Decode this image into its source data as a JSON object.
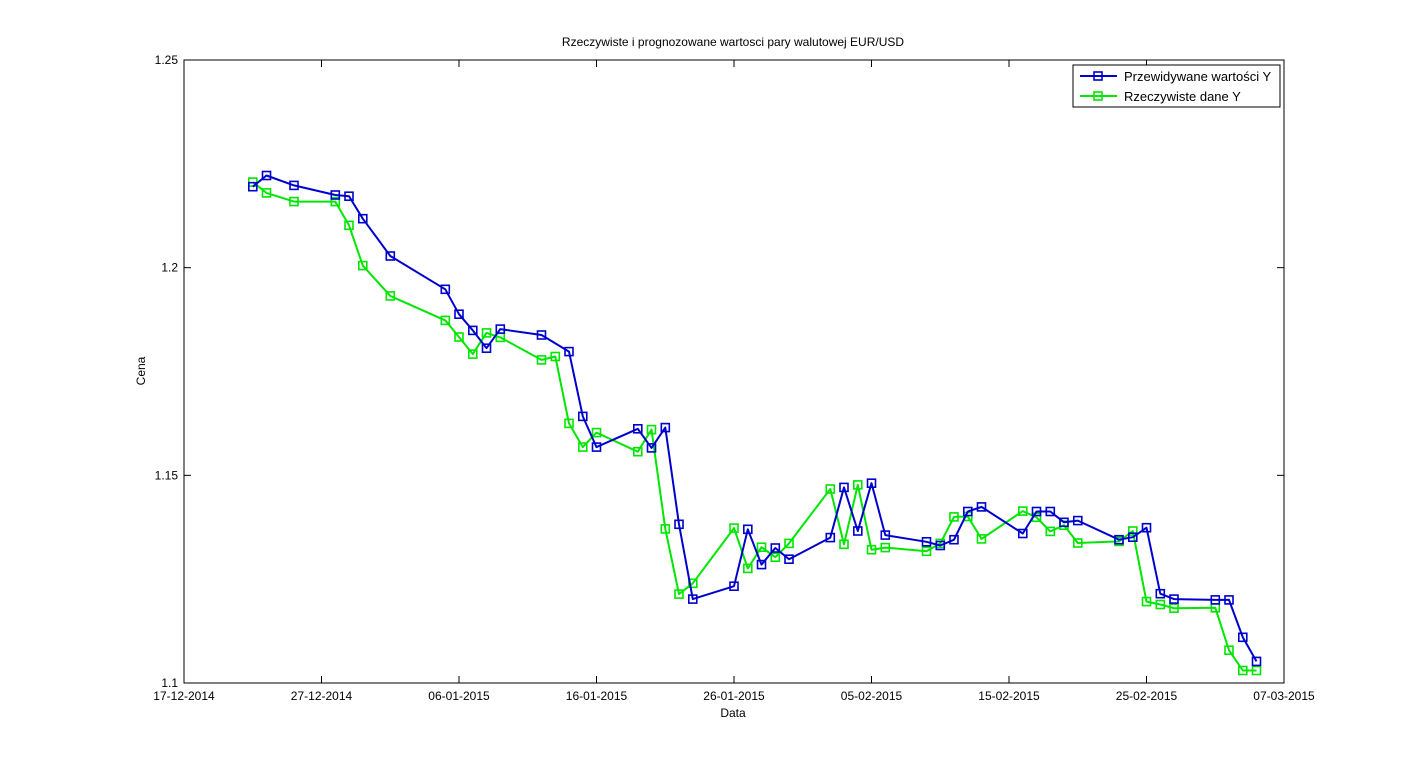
{
  "chart_data": {
    "type": "line",
    "title": "Rzeczywiste i prognozowane wartosci pary walutowej EUR/USD",
    "xlabel": "Data",
    "ylabel": "Cena",
    "xlim": [
      "2014-12-17",
      "2015-03-07"
    ],
    "ylim": [
      1.1,
      1.25
    ],
    "x_ticks": [
      "17-12-2014",
      "27-12-2014",
      "06-01-2015",
      "16-01-2015",
      "26-01-2015",
      "05-02-2015",
      "15-02-2015",
      "25-02-2015",
      "07-03-2015"
    ],
    "x_tick_dates": [
      "2014-12-17",
      "2014-12-27",
      "2015-01-06",
      "2015-01-16",
      "2015-01-26",
      "2015-02-05",
      "2015-02-15",
      "2015-02-25",
      "2015-03-07"
    ],
    "y_ticks": [
      "1.1",
      "1.15",
      "1.2",
      "1.25"
    ],
    "y_tick_values": [
      1.1,
      1.15,
      1.2,
      1.25
    ],
    "grid": false,
    "legend_position": "top-right",
    "series": [
      {
        "name": "Przewidywane wartości Y",
        "color": "#0000cc",
        "marker": "square",
        "points": [
          [
            "2014-12-22",
            1.2195
          ],
          [
            "2014-12-23",
            1.2222
          ],
          [
            "2014-12-25",
            1.2198
          ],
          [
            "2014-12-28",
            1.2175
          ],
          [
            "2014-12-29",
            1.2172
          ],
          [
            "2014-12-30",
            1.2118
          ],
          [
            "2015-01-01",
            1.2028
          ],
          [
            "2015-01-05",
            1.1948
          ],
          [
            "2015-01-06",
            1.1888
          ],
          [
            "2015-01-07",
            1.1849
          ],
          [
            "2015-01-08",
            1.1806
          ],
          [
            "2015-01-09",
            1.1852
          ],
          [
            "2015-01-12",
            1.1838
          ],
          [
            "2015-01-14",
            1.1798
          ],
          [
            "2015-01-15",
            1.1642
          ],
          [
            "2015-01-16",
            1.1568
          ],
          [
            "2015-01-19",
            1.1612
          ],
          [
            "2015-01-20",
            1.1566
          ],
          [
            "2015-01-21",
            1.1615
          ],
          [
            "2015-01-22",
            1.1382
          ],
          [
            "2015-01-23",
            1.1202
          ],
          [
            "2015-01-26",
            1.1233
          ],
          [
            "2015-01-27",
            1.137
          ],
          [
            "2015-01-28",
            1.1285
          ],
          [
            "2015-01-29",
            1.1325
          ],
          [
            "2015-01-30",
            1.1298
          ],
          [
            "2015-02-02",
            1.135
          ],
          [
            "2015-02-03",
            1.1471
          ],
          [
            "2015-02-04",
            1.1366
          ],
          [
            "2015-02-05",
            1.1481
          ],
          [
            "2015-02-06",
            1.1356
          ],
          [
            "2015-02-09",
            1.134
          ],
          [
            "2015-02-10",
            1.1331
          ],
          [
            "2015-02-11",
            1.1345
          ],
          [
            "2015-02-12",
            1.1413
          ],
          [
            "2015-02-13",
            1.1424
          ],
          [
            "2015-02-16",
            1.136
          ],
          [
            "2015-02-17",
            1.1413
          ],
          [
            "2015-02-18",
            1.1413
          ],
          [
            "2015-02-19",
            1.1387
          ],
          [
            "2015-02-20",
            1.1391
          ],
          [
            "2015-02-23",
            1.1345
          ],
          [
            "2015-02-24",
            1.1351
          ],
          [
            "2015-02-25",
            1.1374
          ],
          [
            "2015-02-26",
            1.1215
          ],
          [
            "2015-02-27",
            1.1202
          ],
          [
            "2015-03-02",
            1.12
          ],
          [
            "2015-03-03",
            1.12
          ],
          [
            "2015-03-04",
            1.111
          ],
          [
            "2015-03-05",
            1.1052
          ]
        ]
      },
      {
        "name": "Rzeczywiste dane Y",
        "color": "#00e600",
        "marker": "square",
        "points": [
          [
            "2014-12-22",
            1.2206
          ],
          [
            "2014-12-23",
            1.218
          ],
          [
            "2014-12-25",
            1.2159
          ],
          [
            "2014-12-28",
            1.2159
          ],
          [
            "2014-12-29",
            1.2102
          ],
          [
            "2014-12-30",
            1.2005
          ],
          [
            "2015-01-01",
            1.1932
          ],
          [
            "2015-01-05",
            1.1873
          ],
          [
            "2015-01-06",
            1.1833
          ],
          [
            "2015-01-07",
            1.1792
          ],
          [
            "2015-01-08",
            1.1843
          ],
          [
            "2015-01-09",
            1.1832
          ],
          [
            "2015-01-12",
            1.1778
          ],
          [
            "2015-01-13",
            1.1786
          ],
          [
            "2015-01-14",
            1.1625
          ],
          [
            "2015-01-15",
            1.1568
          ],
          [
            "2015-01-16",
            1.1603
          ],
          [
            "2015-01-19",
            1.1557
          ],
          [
            "2015-01-20",
            1.161
          ],
          [
            "2015-01-21",
            1.1371
          ],
          [
            "2015-01-22",
            1.1214
          ],
          [
            "2015-01-23",
            1.124
          ],
          [
            "2015-01-26",
            1.1373
          ],
          [
            "2015-01-27",
            1.1276
          ],
          [
            "2015-01-28",
            1.1327
          ],
          [
            "2015-01-29",
            1.1303
          ],
          [
            "2015-01-30",
            1.1336
          ],
          [
            "2015-02-02",
            1.1467
          ],
          [
            "2015-02-03",
            1.1334
          ],
          [
            "2015-02-04",
            1.1477
          ],
          [
            "2015-02-05",
            1.1321
          ],
          [
            "2015-02-06",
            1.1326
          ],
          [
            "2015-02-09",
            1.1317
          ],
          [
            "2015-02-10",
            1.1336
          ],
          [
            "2015-02-11",
            1.14
          ],
          [
            "2015-02-12",
            1.1401
          ],
          [
            "2015-02-13",
            1.1347
          ],
          [
            "2015-02-16",
            1.1414
          ],
          [
            "2015-02-17",
            1.1399
          ],
          [
            "2015-02-18",
            1.1365
          ],
          [
            "2015-02-19",
            1.138
          ],
          [
            "2015-02-20",
            1.1337
          ],
          [
            "2015-02-23",
            1.1341
          ],
          [
            "2015-02-24",
            1.1366
          ],
          [
            "2015-02-25",
            1.1196
          ],
          [
            "2015-02-26",
            1.1189
          ],
          [
            "2015-02-27",
            1.118
          ],
          [
            "2015-03-02",
            1.1181
          ],
          [
            "2015-03-03",
            1.1079
          ],
          [
            "2015-03-04",
            1.103
          ],
          [
            "2015-03-05",
            1.103
          ]
        ]
      }
    ]
  }
}
